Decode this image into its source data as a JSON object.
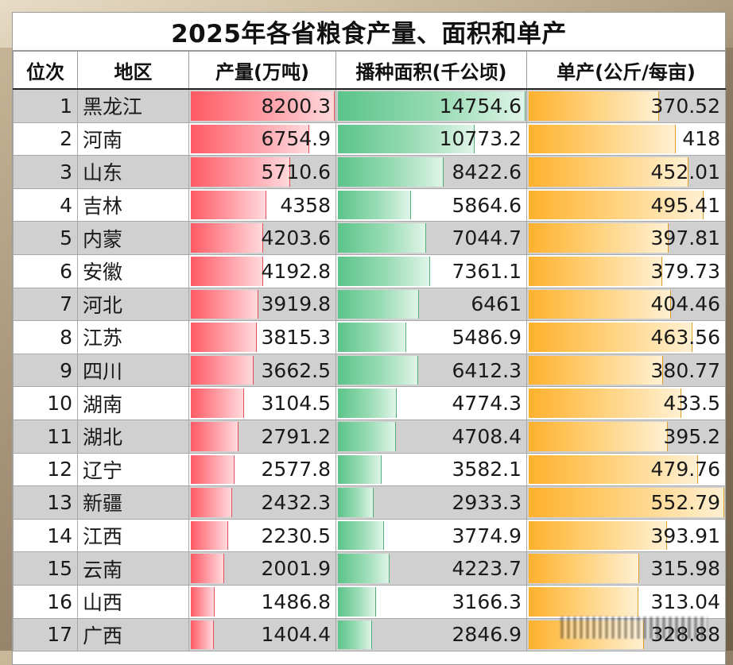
{
  "title": "2025年各省粮食产量、面积和单产",
  "headers": [
    "位次",
    "地区",
    "产量(万吨)",
    "播种面积(千公顷)",
    "单产(公斤/每亩)"
  ],
  "colors": {
    "production_bar": "#ff5a64",
    "area_bar": "#5bc489",
    "yield_bar": "#ffb12c",
    "odd_row": "#d0d0d0",
    "even_row": "#ffffff"
  },
  "rows": [
    {
      "rank": "1",
      "region": "黑龙江",
      "production": "8200.3",
      "area": "14754.6",
      "yield": "370.52"
    },
    {
      "rank": "2",
      "region": "河南",
      "production": "6754.9",
      "area": "10773.2",
      "yield": "418"
    },
    {
      "rank": "3",
      "region": "山东",
      "production": "5710.6",
      "area": "8422.6",
      "yield": "452.01"
    },
    {
      "rank": "4",
      "region": "吉林",
      "production": "4358",
      "area": "5864.6",
      "yield": "495.41"
    },
    {
      "rank": "5",
      "region": "内蒙",
      "production": "4203.6",
      "area": "7044.7",
      "yield": "397.81"
    },
    {
      "rank": "6",
      "region": "安徽",
      "production": "4192.8",
      "area": "7361.1",
      "yield": "379.73"
    },
    {
      "rank": "7",
      "region": "河北",
      "production": "3919.8",
      "area": "6461",
      "yield": "404.46"
    },
    {
      "rank": "8",
      "region": "江苏",
      "production": "3815.3",
      "area": "5486.9",
      "yield": "463.56"
    },
    {
      "rank": "9",
      "region": "四川",
      "production": "3662.5",
      "area": "6412.3",
      "yield": "380.77"
    },
    {
      "rank": "10",
      "region": "湖南",
      "production": "3104.5",
      "area": "4774.3",
      "yield": "433.5"
    },
    {
      "rank": "11",
      "region": "湖北",
      "production": "2791.2",
      "area": "4708.4",
      "yield": "395.2"
    },
    {
      "rank": "12",
      "region": "辽宁",
      "production": "2577.8",
      "area": "3582.1",
      "yield": "479.76"
    },
    {
      "rank": "13",
      "region": "新疆",
      "production": "2432.3",
      "area": "2933.3",
      "yield": "552.79"
    },
    {
      "rank": "14",
      "region": "江西",
      "production": "2230.5",
      "area": "3774.9",
      "yield": "393.91"
    },
    {
      "rank": "15",
      "region": "云南",
      "production": "2001.9",
      "area": "4223.7",
      "yield": "315.98"
    },
    {
      "rank": "16",
      "region": "山西",
      "production": "1486.8",
      "area": "3166.3",
      "yield": "313.04"
    },
    {
      "rank": "17",
      "region": "广西",
      "production": "1404.4",
      "area": "2846.9",
      "yield": "328.88"
    }
  ]
}
